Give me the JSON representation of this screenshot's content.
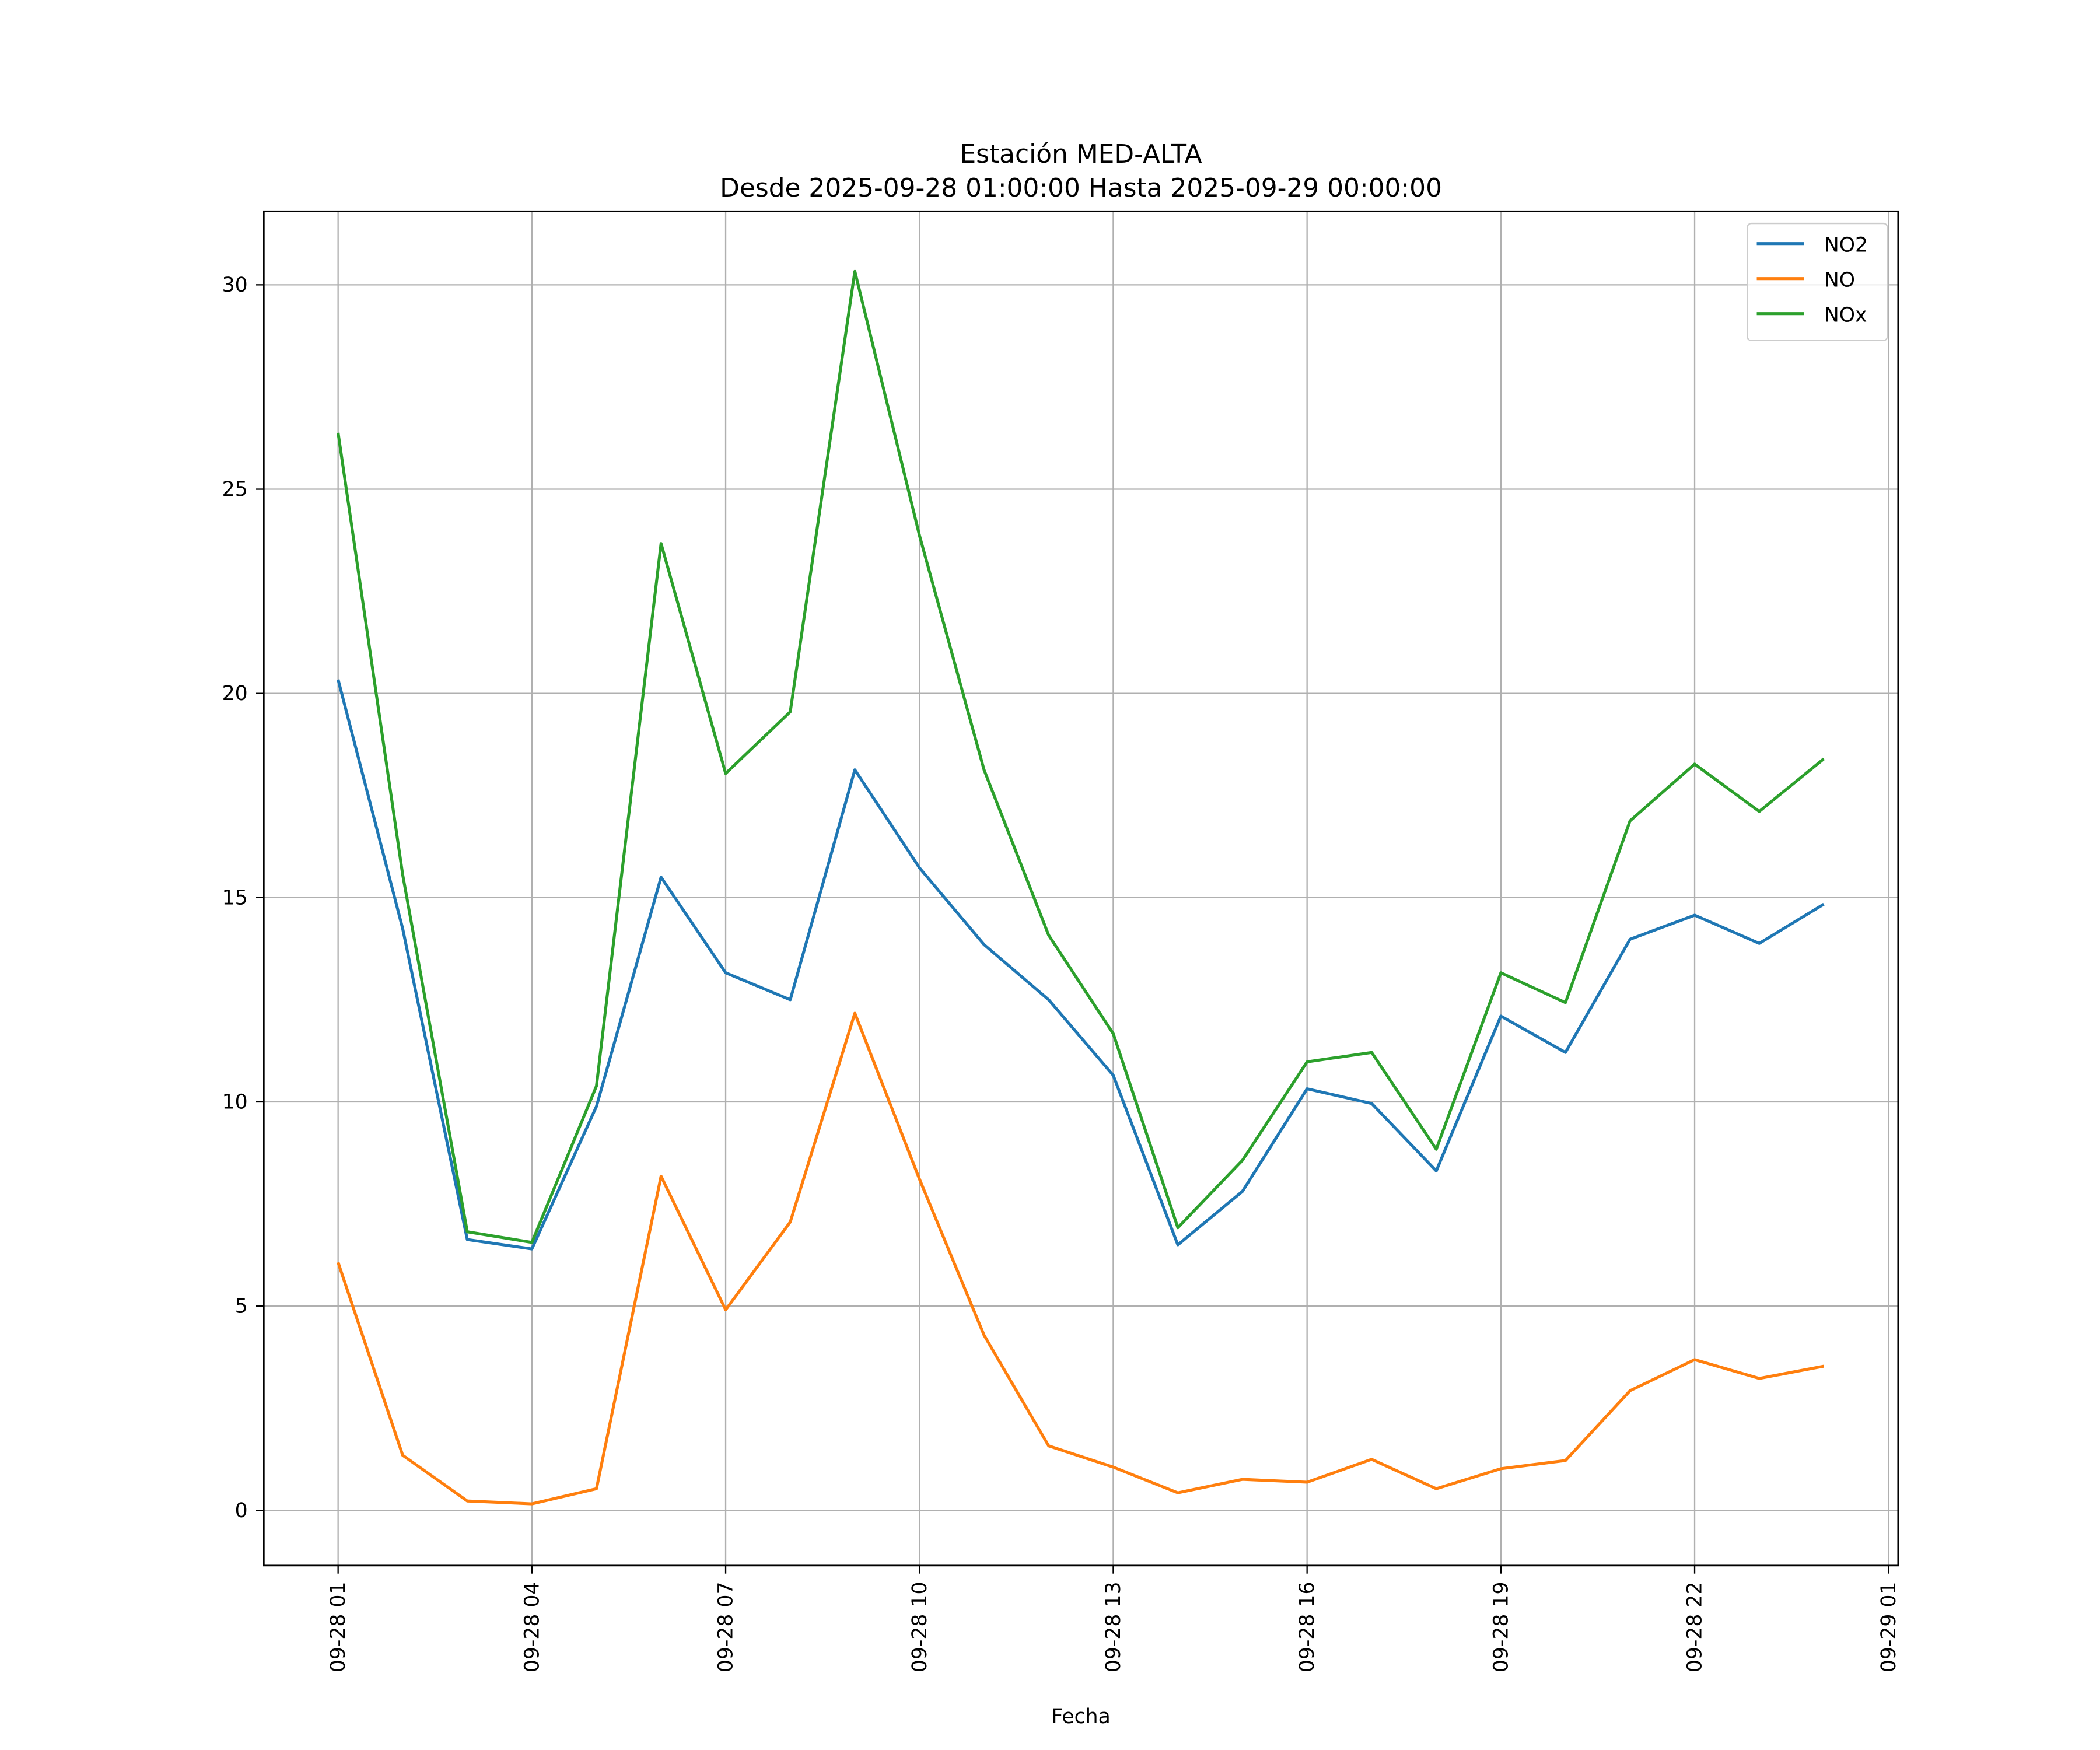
{
  "chart_data": {
    "type": "line",
    "title": "Estación MED-ALTA",
    "subtitle": "Desde 2025-09-28 01:00:00 Hasta 2025-09-29 00:00:00",
    "xlabel": "Fecha",
    "ylabel": "",
    "x": [
      "2025-09-28 01:00",
      "2025-09-28 02:00",
      "2025-09-28 03:00",
      "2025-09-28 04:00",
      "2025-09-28 05:00",
      "2025-09-28 06:00",
      "2025-09-28 07:00",
      "2025-09-28 08:00",
      "2025-09-28 09:00",
      "2025-09-28 10:00",
      "2025-09-28 11:00",
      "2025-09-28 12:00",
      "2025-09-28 13:00",
      "2025-09-28 14:00",
      "2025-09-28 15:00",
      "2025-09-28 16:00",
      "2025-09-28 17:00",
      "2025-09-28 18:00",
      "2025-09-28 19:00",
      "2025-09-28 20:00",
      "2025-09-28 21:00",
      "2025-09-28 22:00",
      "2025-09-28 23:00",
      "2025-09-29 00:00"
    ],
    "series": [
      {
        "name": "NO2",
        "color": "#1f77b4",
        "values": [
          20.34,
          14.24,
          6.63,
          6.4,
          9.89,
          15.5,
          13.16,
          12.5,
          18.13,
          15.73,
          13.85,
          12.5,
          10.65,
          6.5,
          7.81,
          10.32,
          9.96,
          8.31,
          12.1,
          11.21,
          13.98,
          14.57,
          13.88,
          14.84
        ]
      },
      {
        "name": "NO",
        "color": "#ff7f0e",
        "values": [
          6.07,
          1.35,
          0.23,
          0.16,
          0.53,
          8.18,
          4.91,
          7.06,
          12.17,
          8.11,
          4.29,
          1.58,
          1.06,
          0.43,
          0.76,
          0.69,
          1.25,
          0.53,
          1.02,
          1.22,
          2.93,
          3.69,
          3.23,
          3.53
        ]
      },
      {
        "name": "NOx",
        "color": "#2ca02c",
        "values": [
          26.38,
          15.56,
          6.82,
          6.56,
          10.39,
          23.67,
          18.04,
          19.55,
          30.33,
          23.87,
          18.13,
          14.08,
          11.67,
          6.92,
          8.57,
          10.98,
          11.21,
          8.84,
          13.16,
          12.43,
          16.88,
          18.27,
          17.11,
          18.4
        ]
      }
    ],
    "xticks": [
      "09-28 01",
      "09-28 04",
      "09-28 07",
      "09-28 10",
      "09-28 13",
      "09-28 16",
      "09-28 19",
      "09-28 22",
      "09-29 01"
    ],
    "yticks": [
      "0",
      "5",
      "10",
      "15",
      "20",
      "25",
      "30"
    ],
    "ylim": [
      -1.35,
      31.8
    ],
    "xlim": [
      "2025-09-27 23:51",
      "2025-09-29 01:09"
    ],
    "grid": true,
    "legend": "top-right"
  }
}
